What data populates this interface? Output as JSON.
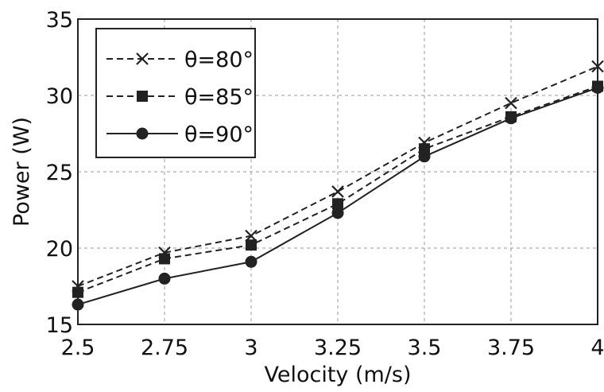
{
  "chart_data": {
    "type": "line",
    "title": "",
    "xlabel": "Velocity (m/s)",
    "ylabel": "Power (W)",
    "x": [
      2.5,
      2.75,
      3,
      3.25,
      3.5,
      3.75,
      4
    ],
    "x_tick_labels": [
      "2.5",
      "2.75",
      "3",
      "3.25",
      "3.5",
      "3.75",
      "4"
    ],
    "ylim": [
      15,
      35
    ],
    "y_ticks": [
      15,
      20,
      25,
      30,
      35
    ],
    "y_tick_labels": [
      "15",
      "20",
      "25",
      "30",
      "35"
    ],
    "grid": true,
    "legend_position": "top-left",
    "series": [
      {
        "name": "θ=80°",
        "marker": "x",
        "line": "dashed",
        "color": "#222222",
        "values": [
          17.5,
          19.7,
          20.8,
          23.7,
          26.9,
          29.5,
          31.9
        ]
      },
      {
        "name": "θ=85°",
        "marker": "square",
        "line": "dashed",
        "color": "#222222",
        "values": [
          17.1,
          19.3,
          20.2,
          22.9,
          26.5,
          28.6,
          30.6
        ]
      },
      {
        "name": "θ=90°",
        "marker": "circle",
        "line": "solid",
        "color": "#222222",
        "values": [
          16.3,
          18.0,
          19.1,
          22.3,
          26.0,
          28.5,
          30.5
        ]
      }
    ]
  }
}
